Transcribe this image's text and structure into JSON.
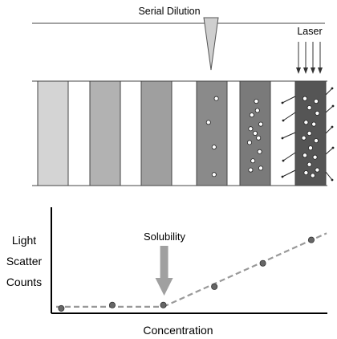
{
  "top": {
    "title": "Serial Dilution",
    "laser_label": "Laser",
    "wells": [
      {
        "fill": "#d4d4d4",
        "particles": 0
      },
      {
        "fill": "#b2b2b2",
        "particles": 0
      },
      {
        "fill": "#9f9f9f",
        "particles": 0
      },
      {
        "fill": "#8a8a8a",
        "particles": 4
      },
      {
        "fill": "#7a7a7a",
        "particles": 12
      },
      {
        "fill": "#555555",
        "particles": 16
      }
    ]
  },
  "chart_data": {
    "type": "scatter",
    "ylabel_lines": [
      "Light",
      "Scatter",
      "Counts"
    ],
    "xlabel": "Concentration",
    "annotation": "Solubility",
    "points": [
      {
        "x": 0.02,
        "y": 0.02
      },
      {
        "x": 0.22,
        "y": 0.06
      },
      {
        "x": 0.42,
        "y": 0.06
      },
      {
        "x": 0.62,
        "y": 0.28
      },
      {
        "x": 0.81,
        "y": 0.56
      },
      {
        "x": 1.0,
        "y": 0.84
      }
    ],
    "baseline_y": 0.04,
    "solubility_x": 0.42,
    "colors": {
      "points": "#666666",
      "trend": "#999999",
      "arrow": "#a0a0a0"
    }
  }
}
